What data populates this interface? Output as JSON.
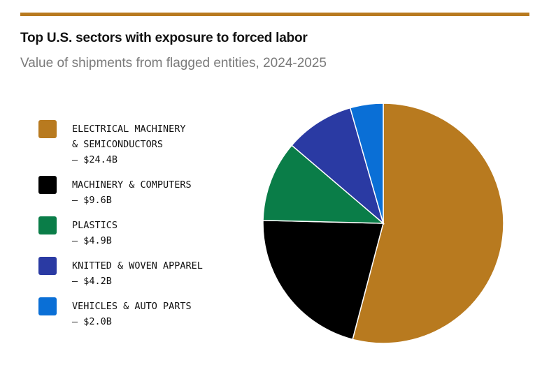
{
  "title": "Top U.S. sectors with exposure to forced labor",
  "subtitle": "Value of shipments from flagged entities, 2024-2025",
  "chart_data": {
    "type": "pie",
    "title": "Top U.S. sectors with exposure to forced labor",
    "subtitle": "Value of shipments from flagged entities, 2024-2025",
    "unit": "$B",
    "legend_position": "left",
    "slices": [
      {
        "lines": [
          "ELECTRICAL MACHINERY",
          "& SEMICONDUCTORS",
          "— $24.4B"
        ],
        "value": 24.4,
        "color": "#b87a1f"
      },
      {
        "lines": [
          "MACHINERY & COMPUTERS",
          "— $9.6B"
        ],
        "value": 9.6,
        "color": "#000000"
      },
      {
        "lines": [
          "PLASTICS",
          "— $4.9B"
        ],
        "value": 4.9,
        "color": "#0a7d48"
      },
      {
        "lines": [
          "KNITTED & WOVEN APPAREL",
          "— $4.2B"
        ],
        "value": 4.2,
        "color": "#2a3aa3"
      },
      {
        "lines": [
          "VEHICLES & AUTO PARTS",
          "— $2.0B"
        ],
        "value": 2.0,
        "color": "#0a6fd6"
      }
    ]
  }
}
